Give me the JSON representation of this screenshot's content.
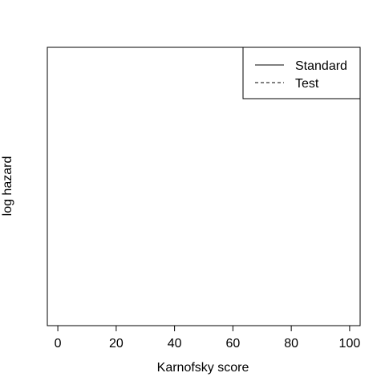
{
  "chart_data": {
    "type": "line",
    "xlabel": "Karnofsky score",
    "ylabel": "log hazard",
    "xlim": [
      -3.6,
      103.6
    ],
    "xticks": [
      "0",
      "20",
      "40",
      "60",
      "80",
      "100"
    ],
    "yticks": [],
    "grid": false,
    "legend_position": "top-right",
    "series": [
      {
        "name": "Standard",
        "line_style": "solid",
        "x": [],
        "y": []
      },
      {
        "name": "Test",
        "line_style": "dashed",
        "x": [],
        "y": []
      }
    ]
  }
}
